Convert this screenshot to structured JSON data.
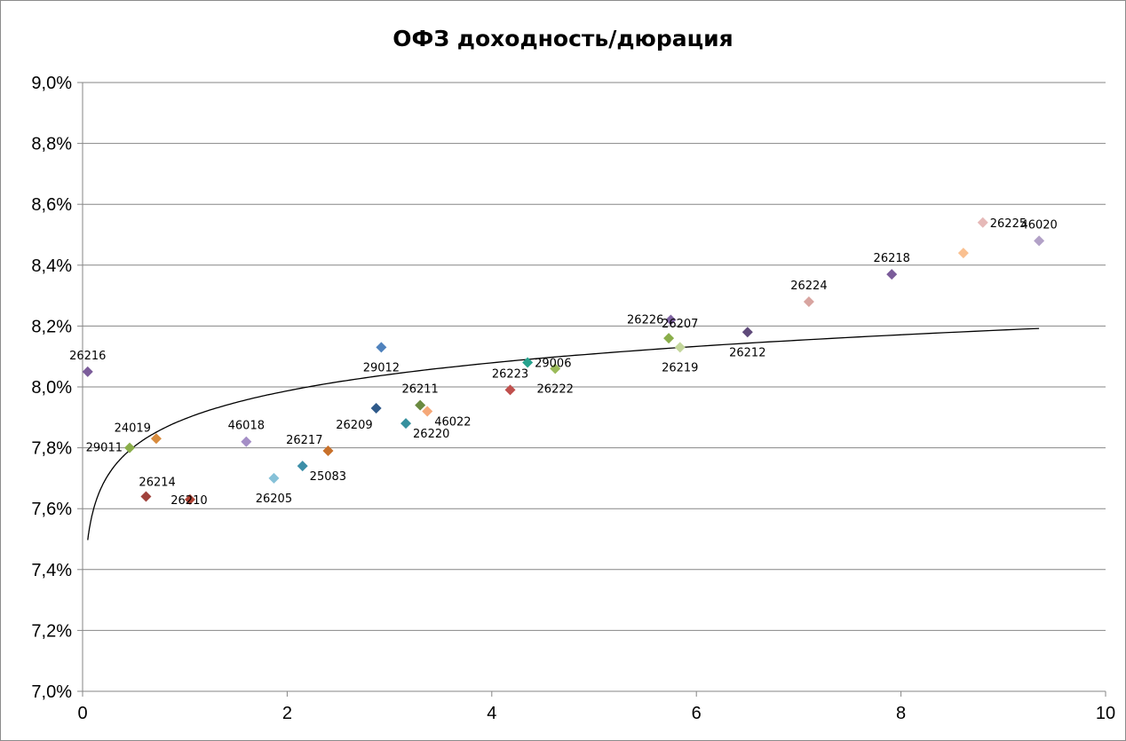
{
  "chart_data": {
    "type": "scatter",
    "title": "ОФЗ доходность/дюрация",
    "xlabel": "",
    "ylabel": "",
    "xlim": [
      0,
      10
    ],
    "ylim": [
      7.0,
      9.0
    ],
    "grid": true,
    "x_ticks": [
      "0",
      "2",
      "4",
      "6",
      "8",
      "10"
    ],
    "y_ticks": [
      "7,0%",
      "7,2%",
      "7,4%",
      "7,6%",
      "7,8%",
      "8,0%",
      "8,2%",
      "8,4%",
      "8,6%",
      "8,8%",
      "9,0%"
    ],
    "points": [
      {
        "label": "26216",
        "x": 0.05,
        "y": 8.05,
        "color": "#7b5c9a",
        "label_pos": "above"
      },
      {
        "label": "29011",
        "x": 0.46,
        "y": 7.8,
        "color": "#8aae4a",
        "label_pos": "left"
      },
      {
        "label": "24019",
        "x": 0.72,
        "y": 7.83,
        "color": "#d88b3c",
        "label_pos": "left-above"
      },
      {
        "label": "26214",
        "x": 0.62,
        "y": 7.64,
        "color": "#a0423c",
        "label_pos": "right-above"
      },
      {
        "label": "26210",
        "x": 1.05,
        "y": 7.63,
        "color": "#b04436",
        "label_pos": "center"
      },
      {
        "label": "46018",
        "x": 1.6,
        "y": 7.82,
        "color": "#a48ec6",
        "label_pos": "above"
      },
      {
        "label": "26205",
        "x": 1.87,
        "y": 7.7,
        "color": "#86c1d8",
        "label_pos": "below"
      },
      {
        "label": "25083",
        "x": 2.15,
        "y": 7.74,
        "color": "#3c8ea8",
        "label_pos": "right-below"
      },
      {
        "label": "26217",
        "x": 2.4,
        "y": 7.79,
        "color": "#c8702a",
        "label_pos": "left-above"
      },
      {
        "label": "26209",
        "x": 2.87,
        "y": 7.93,
        "color": "#2f5a8a",
        "label_pos": "left-below"
      },
      {
        "label": "29012",
        "x": 2.92,
        "y": 8.13,
        "color": "#4f82bd",
        "label_pos": "below"
      },
      {
        "label": "26220",
        "x": 3.16,
        "y": 7.88,
        "color": "#36909e",
        "label_pos": "right-below"
      },
      {
        "label": "26211",
        "x": 3.3,
        "y": 7.94,
        "color": "#6a8a40",
        "label_pos": "above"
      },
      {
        "label": "46022",
        "x": 3.37,
        "y": 7.92,
        "color": "#f5a878",
        "label_pos": "right-below"
      },
      {
        "label": "26223",
        "x": 4.18,
        "y": 7.99,
        "color": "#c0504d",
        "label_pos": "above"
      },
      {
        "label": "29006",
        "x": 4.35,
        "y": 8.08,
        "color": "#27a38e",
        "label_pos": "right"
      },
      {
        "label": "26222",
        "x": 4.62,
        "y": 8.06,
        "color": "#9bbb59",
        "label_pos": "below"
      },
      {
        "label": "26226",
        "x": 5.75,
        "y": 8.22,
        "color": "#8064a2",
        "label_pos": "left"
      },
      {
        "label": "26207",
        "x": 5.73,
        "y": 8.16,
        "color": "#8aae4a",
        "label_pos": "right-above"
      },
      {
        "label": "26219",
        "x": 5.84,
        "y": 8.13,
        "color": "#c3d69b",
        "label_pos": "below"
      },
      {
        "label": "26212",
        "x": 6.5,
        "y": 8.18,
        "color": "#5f4a7a",
        "label_pos": "below"
      },
      {
        "label": "26224",
        "x": 7.1,
        "y": 8.28,
        "color": "#d8a4a0",
        "label_pos": "above"
      },
      {
        "label": "26218",
        "x": 7.91,
        "y": 8.37,
        "color": "#7b5c9a",
        "label_pos": "above"
      },
      {
        "label": "",
        "x": 8.61,
        "y": 8.44,
        "color": "#fac090",
        "label_pos": "none"
      },
      {
        "label": "26225",
        "x": 8.8,
        "y": 8.54,
        "color": "#e6b9b8",
        "label_pos": "right"
      },
      {
        "label": "46020",
        "x": 9.35,
        "y": 8.48,
        "color": "#b2a1c7",
        "label_pos": "above"
      }
    ],
    "trendline": {
      "type": "logarithmic",
      "color": "#000000"
    }
  }
}
